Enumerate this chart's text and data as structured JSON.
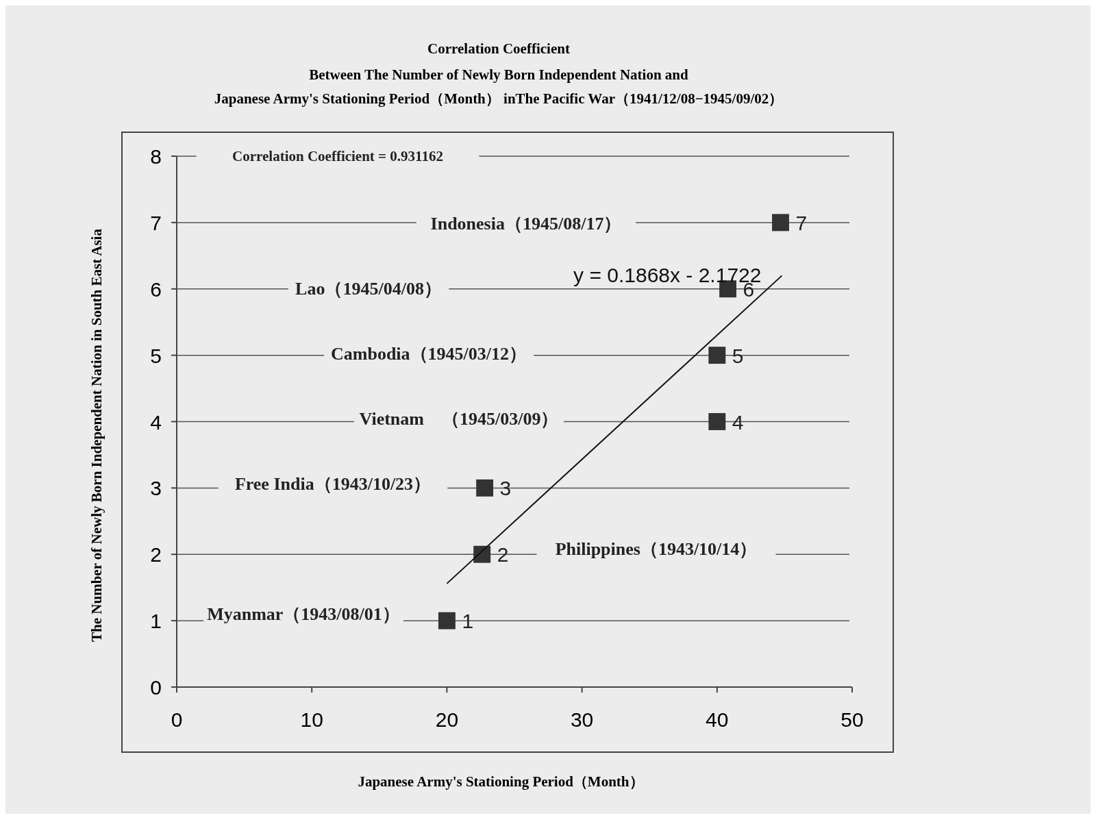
{
  "chart_data": {
    "type": "scatter",
    "title": "Correlation Coefficient",
    "subtitle": "Between The Number of Newly Born Independent Nation and\nJapanese Army's Stationing Period（Month） inThe Pacific War（1941/12/08−1945/09/02）",
    "xlabel": "Japanese Army's Stationing Period（Month）",
    "ylabel": "The Number of Newly Born Independent Nation in  South East Asia",
    "xlim": [
      0,
      50
    ],
    "xticks": [
      0,
      10,
      20,
      30,
      40,
      50
    ],
    "ylim": [
      0,
      8
    ],
    "yticks": [
      0,
      1,
      2,
      3,
      4,
      5,
      6,
      7,
      8
    ],
    "grid": "y",
    "series": [
      {
        "color": "#333333",
        "marker": "square",
        "x": [
          20,
          22.6,
          22.8,
          40,
          40,
          40.8,
          44.7
        ],
        "values": [
          1,
          2,
          3,
          4,
          5,
          6,
          7
        ],
        "value_labels": [
          "1",
          "2",
          "3",
          "4",
          "5",
          "6",
          "7"
        ]
      },
      {
        "type": "line",
        "name": "y = 0.1868x - 2.1722",
        "color": "#111111",
        "marker": "none",
        "x": [
          20,
          44.8
        ],
        "values": [
          1.56,
          6.2
        ]
      }
    ],
    "annotations": [
      "Correlation Coefficient = 0.931162",
      "Indonesia（1945/08/17）",
      "Lao（1945/04/08）",
      "Cambodia（1945/03/12）",
      "Vietnam　（1945/03/09）",
      "Free India（1943/10/23）",
      "Philippines（1943/10/14）",
      "Myanmar（1943/08/01）"
    ]
  }
}
